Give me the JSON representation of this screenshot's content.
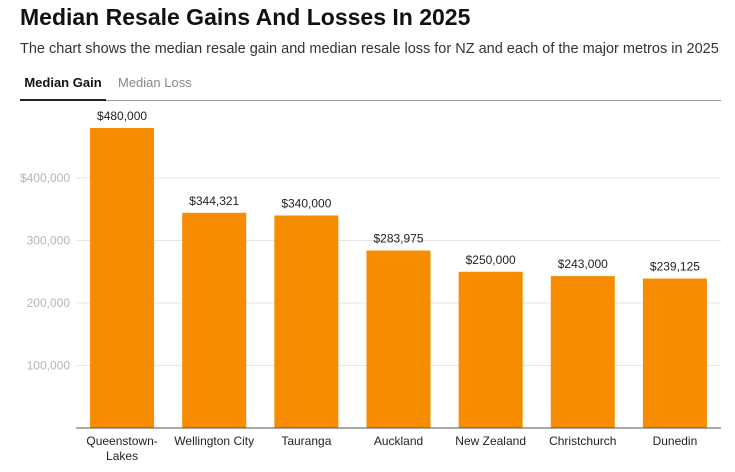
{
  "header": {
    "title": "Median Resale Gains And Losses In 2025",
    "subtitle": "The chart shows the median resale gain and median resale loss for NZ and each of the major metros in 2025"
  },
  "tabs": [
    {
      "label": "Median Gain",
      "active": true
    },
    {
      "label": "Median Loss",
      "active": false
    }
  ],
  "colors": {
    "bar": "#f78c00"
  },
  "chart_data": {
    "type": "bar",
    "title": "Median Resale Gains And Losses In 2025",
    "categories": [
      "Queenstown-Lakes",
      "Wellington City",
      "Tauranga",
      "Auckland",
      "New Zealand",
      "Christchurch",
      "Dunedin"
    ],
    "category_lines": [
      [
        "Queenstown-",
        "Lakes"
      ],
      [
        "Wellington City"
      ],
      [
        "Tauranga"
      ],
      [
        "Auckland"
      ],
      [
        "New Zealand"
      ],
      [
        "Christchurch"
      ],
      [
        "Dunedin"
      ]
    ],
    "values": [
      480000,
      344321,
      340000,
      283975,
      250000,
      243000,
      239125
    ],
    "data_labels": [
      "$480,000",
      "$344,321",
      "$340,000",
      "$283,975",
      "$250,000",
      "$243,000",
      "$239,125"
    ],
    "yticks": [
      100000,
      200000,
      300000,
      400000
    ],
    "ytick_labels": [
      "100,000",
      "200,000",
      "300,000",
      "$400,000"
    ],
    "ylim": [
      0,
      500000
    ],
    "xlabel": "",
    "ylabel": "",
    "grid": true
  }
}
